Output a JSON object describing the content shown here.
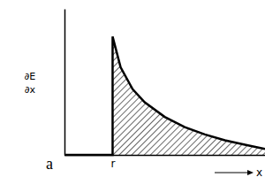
{
  "chart_data": {
    "type": "area",
    "ylabel": "∂E\n∂x",
    "xlabel": "x",
    "annotations": [
      "a"
    ],
    "x": [
      0,
      2.4,
      2.4,
      2.8,
      3.4,
      4,
      5,
      6,
      7,
      8,
      9,
      10
    ],
    "values": [
      0,
      0,
      8.1,
      6.0,
      4.5,
      3.6,
      2.6,
      1.9,
      1.4,
      1.0,
      0.7,
      0.4
    ],
    "xlim": [
      0,
      10
    ],
    "ylim": [
      0,
      10
    ],
    "xticks": [
      {
        "value": 2.4,
        "label": "r"
      }
    ],
    "yticks": [],
    "tick_labels": "x",
    "grid": false,
    "color": "#000000"
  }
}
